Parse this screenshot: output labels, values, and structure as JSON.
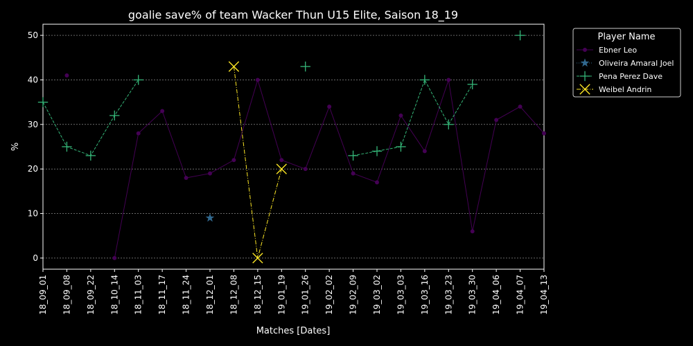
{
  "chart_data": {
    "type": "line",
    "title": "goalie save% of team Wacker Thun U15 Elite, Saison 18_19",
    "xlabel": "Matches [Dates]",
    "ylabel": "%",
    "ylim": [
      -2.5,
      52.5
    ],
    "yticks": [
      0,
      10,
      20,
      30,
      40,
      50
    ],
    "grid": true,
    "legend_title": "Player Name",
    "legend_position": "upper right, outside plot",
    "categories": [
      "18_09_01",
      "18_09_08",
      "18_09_22",
      "18_10_14",
      "18_11_03",
      "18_11_17",
      "18_11_24",
      "18_12_01",
      "18_12_08",
      "18_12_15",
      "19_01_19",
      "19_01_26",
      "19_02_02",
      "19_02_09",
      "19_03_02",
      "19_03_03",
      "19_03_16",
      "19_03_23",
      "19_03_30",
      "19_04_06",
      "19_04_07",
      "19_04_13"
    ],
    "series": [
      {
        "name": "Ebner Leo",
        "color": "#440154",
        "line_style": "solid",
        "marker": "circle",
        "values": [
          null,
          41,
          null,
          0,
          28,
          33,
          18,
          19,
          22,
          40,
          22,
          20,
          34,
          19,
          17,
          32,
          24,
          40,
          6,
          31,
          34,
          28
        ]
      },
      {
        "name": "Oliveira Amaral Joel",
        "color": "#31688e",
        "line_style": "dotted",
        "marker": "star",
        "values": [
          null,
          null,
          null,
          null,
          null,
          null,
          null,
          9,
          null,
          null,
          null,
          null,
          null,
          null,
          null,
          null,
          null,
          null,
          null,
          null,
          null,
          null
        ]
      },
      {
        "name": "Pena Perez Dave",
        "color": "#35b779",
        "line_style": "dashed",
        "marker": "plus",
        "values": [
          35,
          25,
          23,
          32,
          40,
          null,
          null,
          null,
          null,
          null,
          null,
          43,
          null,
          23,
          24,
          25,
          40,
          30,
          39,
          null,
          50,
          null
        ]
      },
      {
        "name": "Weibel Andrin",
        "color": "#fde725",
        "line_style": "dashdot",
        "marker": "x",
        "values": [
          null,
          null,
          null,
          null,
          null,
          null,
          null,
          null,
          43,
          0,
          20,
          null,
          null,
          null,
          null,
          null,
          null,
          null,
          null,
          null,
          null,
          null
        ]
      }
    ]
  }
}
